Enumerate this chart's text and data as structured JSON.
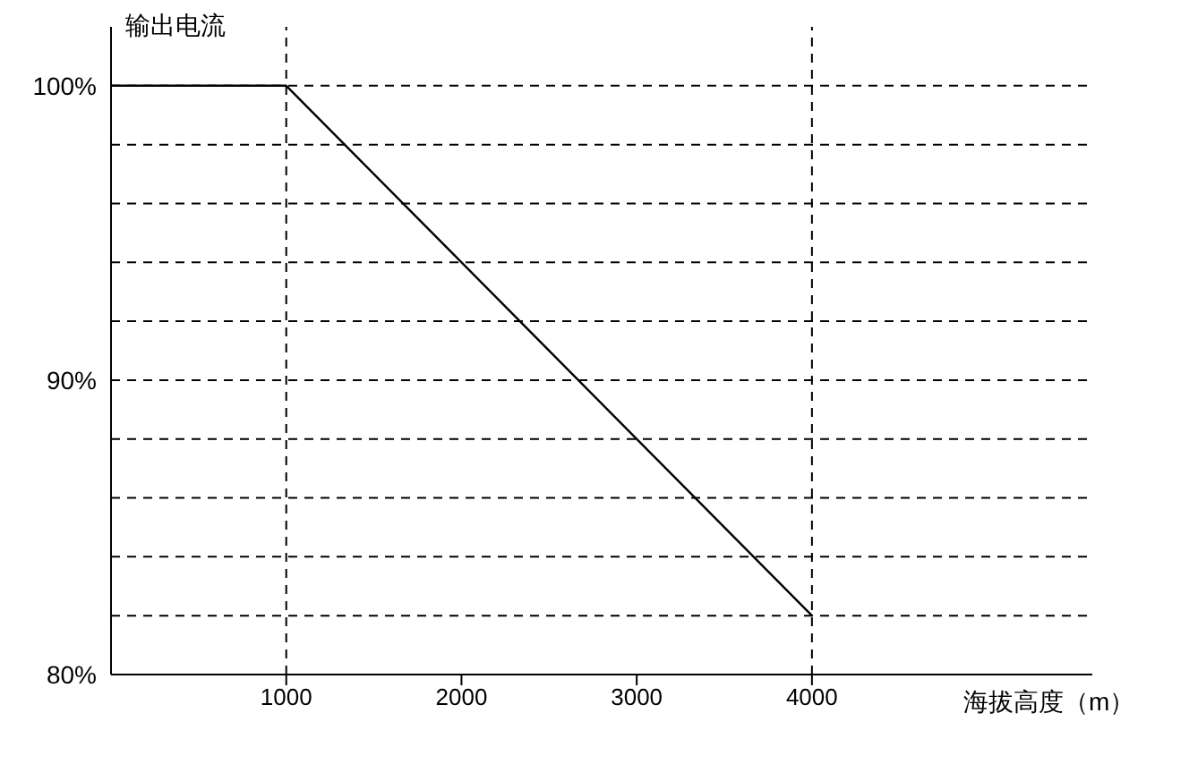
{
  "chart_data": {
    "type": "line",
    "xlabel": "海拔高度（m）",
    "ylabel": "输出电流",
    "x": [
      0,
      1000,
      4000
    ],
    "series": [
      {
        "color": "#000000",
        "values": [
          100,
          100,
          82
        ]
      }
    ],
    "xlim": [
      0,
      5600
    ],
    "xticks": [
      1000,
      2000,
      3000,
      4000
    ],
    "ylim": [
      80,
      102
    ],
    "yticks": [
      {
        "value": 80,
        "label": "80%"
      },
      {
        "value": 82,
        "label": null
      },
      {
        "value": 84,
        "label": null
      },
      {
        "value": 86,
        "label": null
      },
      {
        "value": 88,
        "label": null
      },
      {
        "value": 90,
        "label": "90%"
      },
      {
        "value": 92,
        "label": null
      },
      {
        "value": 94,
        "label": null
      },
      {
        "value": 96,
        "label": null
      },
      {
        "value": 98,
        "label": null
      },
      {
        "value": 100,
        "label": "100%"
      }
    ],
    "grid": "y",
    "marker": "none",
    "line_style": "solid",
    "legend": false,
    "ref_lines": [
      {
        "axis": "x",
        "value": 1000,
        "line_style": "dashed",
        "color": "#000000"
      },
      {
        "axis": "x",
        "value": 4000,
        "line_style": "dashed",
        "color": "#000000"
      }
    ]
  }
}
